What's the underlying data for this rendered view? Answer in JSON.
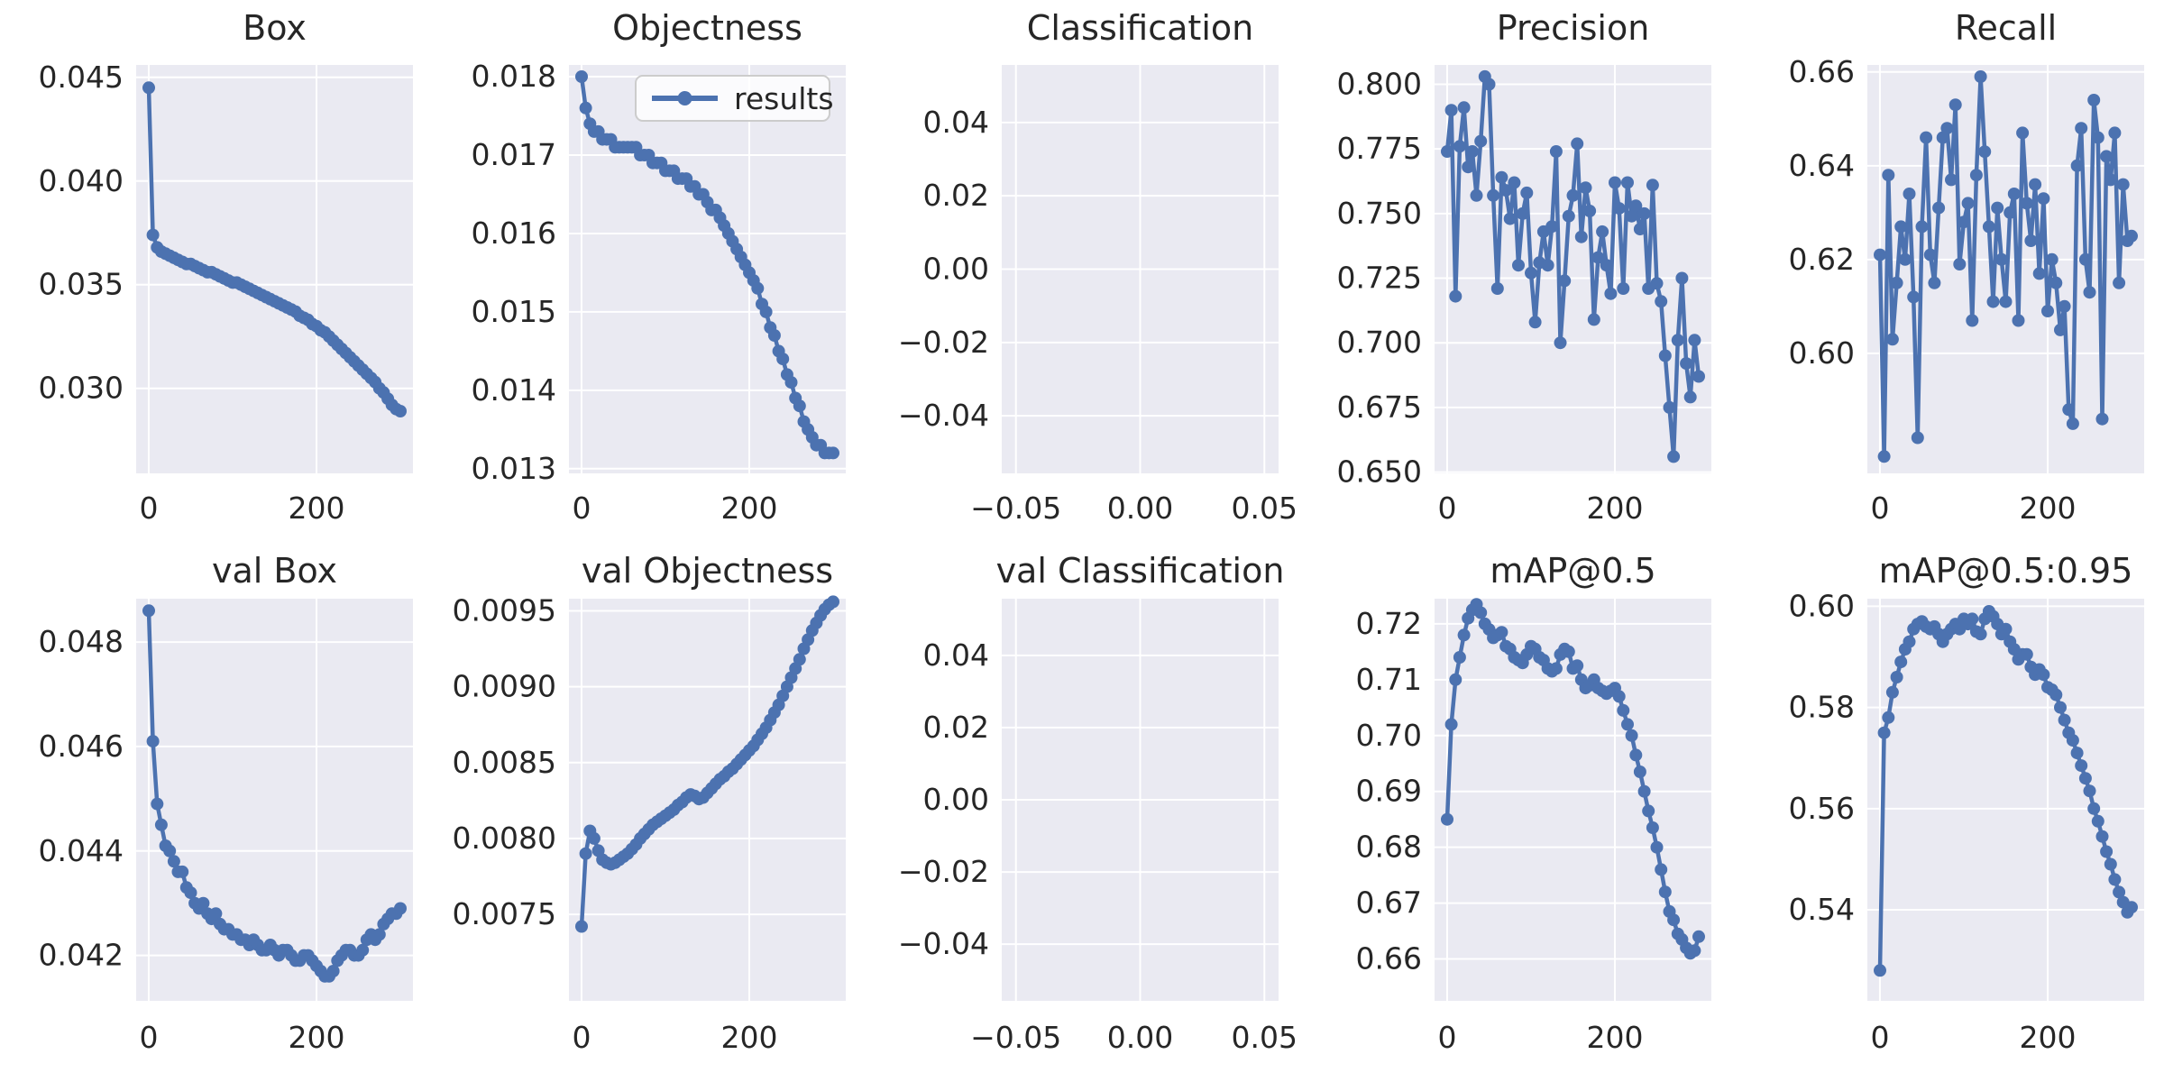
{
  "figure": {
    "background": "#ffffff",
    "axes_background": "#eaeaf2",
    "grid_color": "#ffffff",
    "line_color": "#4c72b0",
    "text_color": "#262626",
    "legend": {
      "label": "results",
      "background": "#ffffff",
      "border": "#cccccc"
    }
  },
  "epochs": [
    0,
    5,
    10,
    15,
    20,
    25,
    30,
    35,
    40,
    45,
    50,
    55,
    60,
    65,
    70,
    75,
    80,
    85,
    90,
    95,
    100,
    105,
    110,
    115,
    120,
    125,
    130,
    135,
    140,
    145,
    150,
    155,
    160,
    165,
    170,
    175,
    180,
    185,
    190,
    195,
    200,
    205,
    210,
    215,
    220,
    225,
    230,
    235,
    240,
    245,
    250,
    255,
    260,
    265,
    270,
    275,
    280,
    285,
    290,
    295,
    300
  ],
  "chart_data": [
    {
      "id": "box",
      "type": "line",
      "row": 0,
      "col": 0,
      "title": "Box",
      "xlim": [
        -15,
        315
      ],
      "ylim": [
        0.0259,
        0.0456
      ],
      "xticks": [
        0,
        200
      ],
      "xtick_labels": [
        "0",
        "200"
      ],
      "yticks": [
        0.03,
        0.035,
        0.04,
        0.045
      ],
      "ytick_labels": [
        "0.030",
        "0.035",
        "0.040",
        "0.045"
      ],
      "legend": false,
      "empty": false,
      "y": [
        0.0445,
        0.0374,
        0.0368,
        0.0366,
        0.0365,
        0.0364,
        0.0363,
        0.0362,
        0.0361,
        0.036,
        0.036,
        0.0359,
        0.0358,
        0.0357,
        0.0356,
        0.0356,
        0.0355,
        0.0354,
        0.0353,
        0.0352,
        0.0351,
        0.0351,
        0.035,
        0.0349,
        0.0348,
        0.0347,
        0.0346,
        0.0345,
        0.0344,
        0.0343,
        0.0342,
        0.0341,
        0.034,
        0.0339,
        0.0338,
        0.0337,
        0.0335,
        0.0334,
        0.0333,
        0.0331,
        0.033,
        0.0328,
        0.0327,
        0.0325,
        0.0323,
        0.0321,
        0.0319,
        0.0317,
        0.0315,
        0.0313,
        0.0311,
        0.0309,
        0.0307,
        0.0305,
        0.0303,
        0.03,
        0.0298,
        0.0295,
        0.0292,
        0.029,
        0.0289
      ]
    },
    {
      "id": "objectness",
      "type": "line",
      "row": 0,
      "col": 1,
      "title": "Objectness",
      "xlim": [
        -15,
        315
      ],
      "ylim": [
        0.01294,
        0.01815
      ],
      "xticks": [
        0,
        200
      ],
      "xtick_labels": [
        "0",
        "200"
      ],
      "yticks": [
        0.013,
        0.014,
        0.015,
        0.016,
        0.017,
        0.018
      ],
      "ytick_labels": [
        "0.013",
        "0.014",
        "0.015",
        "0.016",
        "0.017",
        "0.018"
      ],
      "legend": true,
      "empty": false,
      "y": [
        0.018,
        0.0176,
        0.0174,
        0.0173,
        0.0173,
        0.0172,
        0.0172,
        0.0172,
        0.0171,
        0.0171,
        0.0171,
        0.0171,
        0.0171,
        0.0171,
        0.017,
        0.017,
        0.017,
        0.0169,
        0.0169,
        0.0169,
        0.0168,
        0.0168,
        0.0168,
        0.0167,
        0.0167,
        0.0167,
        0.0166,
        0.0166,
        0.0165,
        0.0165,
        0.0164,
        0.0163,
        0.0163,
        0.0162,
        0.0161,
        0.016,
        0.0159,
        0.0158,
        0.0157,
        0.0156,
        0.0155,
        0.0154,
        0.0153,
        0.0151,
        0.015,
        0.0148,
        0.0147,
        0.0145,
        0.0144,
        0.0142,
        0.0141,
        0.0139,
        0.0138,
        0.0136,
        0.0135,
        0.0134,
        0.0133,
        0.0133,
        0.0132,
        0.0132,
        0.0132
      ]
    },
    {
      "id": "classification",
      "type": "line",
      "row": 0,
      "col": 2,
      "title": "Classification",
      "xlim": [
        -0.0557,
        0.0557
      ],
      "ylim": [
        -0.0557,
        0.0557
      ],
      "xticks": [
        -0.05,
        0.0,
        0.05
      ],
      "xtick_labels": [
        "−0.05",
        "0.00",
        "0.05"
      ],
      "yticks": [
        -0.04,
        -0.02,
        0.0,
        0.02,
        0.04
      ],
      "ytick_labels": [
        "−0.04",
        "−0.02",
        "0.00",
        "0.02",
        "0.04"
      ],
      "legend": false,
      "empty": true,
      "y": []
    },
    {
      "id": "precision",
      "type": "line",
      "row": 0,
      "col": 3,
      "title": "Precision",
      "xlim": [
        -15,
        315
      ],
      "ylim": [
        0.6495,
        0.8075
      ],
      "xticks": [
        0,
        200
      ],
      "xtick_labels": [
        "0",
        "200"
      ],
      "yticks": [
        0.65,
        0.675,
        0.7,
        0.725,
        0.75,
        0.775,
        0.8
      ],
      "ytick_labels": [
        "0.650",
        "0.675",
        "0.700",
        "0.725",
        "0.750",
        "0.775",
        "0.800"
      ],
      "legend": false,
      "empty": false,
      "y": [
        0.774,
        0.79,
        0.718,
        0.776,
        0.791,
        0.768,
        0.774,
        0.757,
        0.778,
        0.803,
        0.8,
        0.757,
        0.721,
        0.764,
        0.759,
        0.748,
        0.762,
        0.73,
        0.75,
        0.758,
        0.727,
        0.708,
        0.731,
        0.743,
        0.73,
        0.745,
        0.774,
        0.7,
        0.724,
        0.749,
        0.757,
        0.777,
        0.741,
        0.76,
        0.751,
        0.709,
        0.733,
        0.743,
        0.73,
        0.719,
        0.762,
        0.752,
        0.721,
        0.762,
        0.749,
        0.753,
        0.744,
        0.75,
        0.721,
        0.761,
        0.723,
        0.716,
        0.695,
        0.675,
        0.656,
        0.701,
        0.725,
        0.692,
        0.679,
        0.701,
        0.687
      ]
    },
    {
      "id": "recall",
      "type": "line",
      "row": 0,
      "col": 4,
      "title": "Recall",
      "xlim": [
        -15,
        315
      ],
      "ylim": [
        0.5744,
        0.6615
      ],
      "xticks": [
        0,
        200
      ],
      "xtick_labels": [
        "0",
        "200"
      ],
      "yticks": [
        0.6,
        0.62,
        0.64,
        0.66
      ],
      "ytick_labels": [
        "0.60",
        "0.62",
        "0.64",
        "0.66"
      ],
      "legend": false,
      "empty": false,
      "y": [
        0.621,
        0.578,
        0.638,
        0.603,
        0.615,
        0.627,
        0.62,
        0.634,
        0.612,
        0.582,
        0.627,
        0.646,
        0.621,
        0.615,
        0.631,
        0.646,
        0.648,
        0.637,
        0.653,
        0.619,
        0.628,
        0.632,
        0.607,
        0.638,
        0.659,
        0.643,
        0.627,
        0.611,
        0.631,
        0.62,
        0.611,
        0.63,
        0.634,
        0.607,
        0.647,
        0.632,
        0.624,
        0.636,
        0.617,
        0.633,
        0.609,
        0.62,
        0.615,
        0.605,
        0.61,
        0.588,
        0.585,
        0.64,
        0.648,
        0.62,
        0.613,
        0.654,
        0.646,
        0.586,
        0.642,
        0.637,
        0.647,
        0.615,
        0.636,
        0.624,
        0.625
      ]
    },
    {
      "id": "val-box",
      "type": "line",
      "row": 1,
      "col": 0,
      "title": "val Box",
      "xlim": [
        -15,
        315
      ],
      "ylim": [
        0.04113,
        0.04883
      ],
      "xticks": [
        0,
        200
      ],
      "xtick_labels": [
        "0",
        "200"
      ],
      "yticks": [
        0.042,
        0.044,
        0.046,
        0.048
      ],
      "ytick_labels": [
        "0.042",
        "0.044",
        "0.046",
        "0.048"
      ],
      "legend": false,
      "empty": false,
      "y": [
        0.0486,
        0.0461,
        0.0449,
        0.0445,
        0.0441,
        0.044,
        0.0438,
        0.0436,
        0.0436,
        0.0433,
        0.0432,
        0.043,
        0.0429,
        0.043,
        0.0428,
        0.0427,
        0.0428,
        0.0426,
        0.0425,
        0.0425,
        0.0424,
        0.0424,
        0.0423,
        0.0423,
        0.0422,
        0.0423,
        0.0422,
        0.0421,
        0.0421,
        0.0422,
        0.0421,
        0.042,
        0.0421,
        0.0421,
        0.042,
        0.0419,
        0.0419,
        0.042,
        0.042,
        0.0419,
        0.0418,
        0.0417,
        0.0416,
        0.0416,
        0.0417,
        0.0419,
        0.042,
        0.0421,
        0.0421,
        0.042,
        0.042,
        0.0421,
        0.0423,
        0.0424,
        0.0423,
        0.0424,
        0.0426,
        0.0427,
        0.0428,
        0.0428,
        0.0429
      ]
    },
    {
      "id": "val-objectness",
      "type": "line",
      "row": 1,
      "col": 1,
      "title": "val Objectness",
      "xlim": [
        -15,
        315
      ],
      "ylim": [
        0.00693,
        0.00958
      ],
      "xticks": [
        0,
        200
      ],
      "xtick_labels": [
        "0",
        "200"
      ],
      "yticks": [
        0.0075,
        0.008,
        0.0085,
        0.009,
        0.0095
      ],
      "ytick_labels": [
        "0.0075",
        "0.0080",
        "0.0085",
        "0.0090",
        "0.0095"
      ],
      "legend": false,
      "empty": false,
      "y": [
        0.00742,
        0.0079,
        0.00805,
        0.008,
        0.00792,
        0.00786,
        0.00784,
        0.00783,
        0.00784,
        0.00786,
        0.00788,
        0.0079,
        0.00793,
        0.00796,
        0.008,
        0.00803,
        0.00806,
        0.00809,
        0.00811,
        0.00813,
        0.00815,
        0.00817,
        0.00819,
        0.00822,
        0.00824,
        0.00827,
        0.00829,
        0.00828,
        0.00826,
        0.00827,
        0.0083,
        0.00833,
        0.00836,
        0.00839,
        0.00841,
        0.00844,
        0.00846,
        0.00849,
        0.00852,
        0.00855,
        0.00858,
        0.00861,
        0.00865,
        0.00869,
        0.00873,
        0.00878,
        0.00883,
        0.00888,
        0.00894,
        0.009,
        0.00906,
        0.00912,
        0.00918,
        0.00925,
        0.00931,
        0.00937,
        0.00942,
        0.00947,
        0.00951,
        0.00954,
        0.00956
      ]
    },
    {
      "id": "val-classification",
      "type": "line",
      "row": 1,
      "col": 2,
      "title": "val Classification",
      "xlim": [
        -0.0557,
        0.0557
      ],
      "ylim": [
        -0.0557,
        0.0557
      ],
      "xticks": [
        -0.05,
        0.0,
        0.05
      ],
      "xtick_labels": [
        "−0.05",
        "0.00",
        "0.05"
      ],
      "yticks": [
        -0.04,
        -0.02,
        0.0,
        0.02,
        0.04
      ],
      "ytick_labels": [
        "−0.04",
        "−0.02",
        "0.00",
        "0.02",
        "0.04"
      ],
      "legend": false,
      "empty": true,
      "y": []
    },
    {
      "id": "map50",
      "type": "line",
      "row": 1,
      "col": 3,
      "title": "mAP@0.5",
      "xlim": [
        -15,
        315
      ],
      "ylim": [
        0.6525,
        0.7245
      ],
      "xticks": [
        0,
        200
      ],
      "xtick_labels": [
        "0",
        "200"
      ],
      "yticks": [
        0.66,
        0.67,
        0.68,
        0.69,
        0.7,
        0.71,
        0.72
      ],
      "ytick_labels": [
        "0.66",
        "0.67",
        "0.68",
        "0.69",
        "0.70",
        "0.71",
        "0.72"
      ],
      "legend": false,
      "empty": false,
      "y": [
        0.685,
        0.702,
        0.71,
        0.714,
        0.718,
        0.721,
        0.7225,
        0.7235,
        0.722,
        0.72,
        0.719,
        0.7175,
        0.718,
        0.7185,
        0.716,
        0.7155,
        0.714,
        0.7135,
        0.713,
        0.7145,
        0.716,
        0.7155,
        0.714,
        0.7135,
        0.712,
        0.7115,
        0.712,
        0.7145,
        0.7155,
        0.715,
        0.712,
        0.7125,
        0.71,
        0.7085,
        0.709,
        0.71,
        0.7085,
        0.708,
        0.7075,
        0.708,
        0.7085,
        0.707,
        0.7045,
        0.702,
        0.7,
        0.6965,
        0.6935,
        0.69,
        0.6865,
        0.6835,
        0.68,
        0.676,
        0.672,
        0.6685,
        0.667,
        0.6645,
        0.6635,
        0.662,
        0.661,
        0.6615,
        0.664
      ]
    },
    {
      "id": "map50-95",
      "type": "line",
      "row": 1,
      "col": 4,
      "title": "mAP@0.5:0.95",
      "xlim": [
        -15,
        315
      ],
      "ylim": [
        0.522,
        0.6015
      ],
      "xticks": [
        0,
        200
      ],
      "xtick_labels": [
        "0",
        "200"
      ],
      "yticks": [
        0.54,
        0.56,
        0.58,
        0.6
      ],
      "ytick_labels": [
        "0.54",
        "0.56",
        "0.58",
        "0.60"
      ],
      "legend": false,
      "empty": false,
      "y": [
        0.528,
        0.575,
        0.578,
        0.583,
        0.586,
        0.589,
        0.5915,
        0.593,
        0.5955,
        0.5965,
        0.597,
        0.596,
        0.5955,
        0.596,
        0.5945,
        0.593,
        0.5945,
        0.5955,
        0.5965,
        0.5955,
        0.5975,
        0.5965,
        0.5975,
        0.595,
        0.5945,
        0.5975,
        0.599,
        0.598,
        0.5965,
        0.5945,
        0.5955,
        0.593,
        0.5915,
        0.5895,
        0.5905,
        0.5905,
        0.588,
        0.5865,
        0.5875,
        0.5865,
        0.584,
        0.5835,
        0.5825,
        0.58,
        0.5775,
        0.575,
        0.5735,
        0.571,
        0.5685,
        0.566,
        0.5635,
        0.56,
        0.5575,
        0.5545,
        0.5515,
        0.549,
        0.546,
        0.5435,
        0.5415,
        0.5395,
        0.5405
      ]
    }
  ]
}
